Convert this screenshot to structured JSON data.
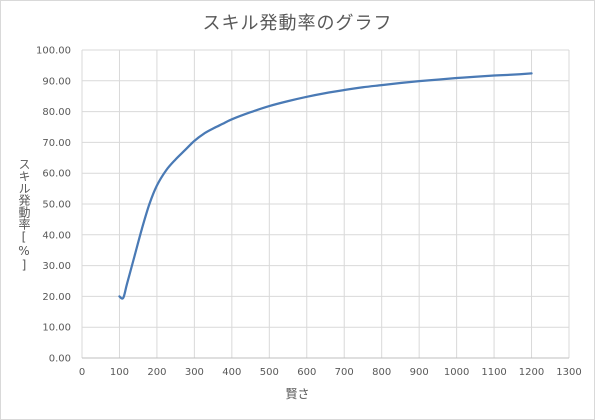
{
  "chart_data": {
    "type": "line",
    "title": "スキル発動率のグラフ",
    "xlabel": "賢さ",
    "ylabel": "スキル発動率[%]",
    "xlim": [
      0,
      1300
    ],
    "ylim": [
      0,
      100
    ],
    "x_ticks": [
      0,
      100,
      200,
      300,
      400,
      500,
      600,
      700,
      800,
      900,
      1000,
      1100,
      1200,
      1300
    ],
    "y_ticks": [
      "0.00",
      "10.00",
      "20.00",
      "30.00",
      "40.00",
      "50.00",
      "60.00",
      "70.00",
      "80.00",
      "90.00",
      "100.00"
    ],
    "grid": true,
    "legend": false,
    "series": [
      {
        "color": "#4a7ab5",
        "points": [
          [
            100,
            20.0
          ],
          [
            110,
            19.5
          ],
          [
            120,
            24.0
          ],
          [
            140,
            33.0
          ],
          [
            160,
            42.0
          ],
          [
            180,
            50.0
          ],
          [
            200,
            56.0
          ],
          [
            225,
            61.0
          ],
          [
            250,
            64.5
          ],
          [
            275,
            67.5
          ],
          [
            300,
            70.5
          ],
          [
            325,
            72.8
          ],
          [
            350,
            74.5
          ],
          [
            375,
            76.0
          ],
          [
            400,
            77.5
          ],
          [
            450,
            79.8
          ],
          [
            500,
            81.8
          ],
          [
            550,
            83.4
          ],
          [
            600,
            84.8
          ],
          [
            650,
            86.0
          ],
          [
            700,
            87.0
          ],
          [
            750,
            87.9
          ],
          [
            800,
            88.6
          ],
          [
            850,
            89.3
          ],
          [
            900,
            89.9
          ],
          [
            950,
            90.4
          ],
          [
            1000,
            90.9
          ],
          [
            1050,
            91.3
          ],
          [
            1100,
            91.7
          ],
          [
            1150,
            92.0
          ],
          [
            1200,
            92.4
          ]
        ]
      }
    ]
  }
}
